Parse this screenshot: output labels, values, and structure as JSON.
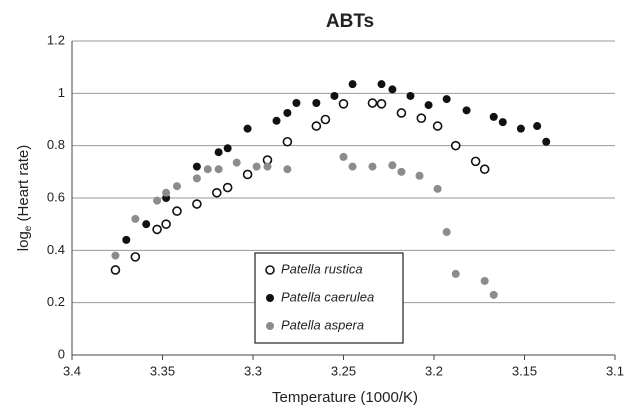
{
  "chart_data": {
    "type": "scatter",
    "title": "ABTs",
    "x_label": "Temperature (1000/K)",
    "y_label": [
      "log",
      "e",
      " (Heart rate)"
    ],
    "xlim": [
      3.4,
      3.1
    ],
    "xticks": [
      3.4,
      3.35,
      3.3,
      3.25,
      3.2,
      3.15,
      3.1
    ],
    "ylim": [
      0,
      1.2
    ],
    "yticks": [
      0,
      0.2,
      0.4,
      0.6,
      0.8,
      1,
      1.2
    ],
    "grid": true,
    "legend": "lower center",
    "series": [
      {
        "name": "Patella rustica",
        "color": "#111111",
        "filled": false,
        "x": [
          3.376,
          3.365,
          3.353,
          3.348,
          3.342,
          3.331,
          3.32,
          3.314,
          3.303,
          3.292,
          3.281,
          3.265,
          3.26,
          3.25,
          3.234,
          3.229,
          3.218,
          3.207,
          3.198,
          3.188,
          3.177,
          3.172
        ],
        "values": [
          0.325,
          0.375,
          0.48,
          0.5,
          0.55,
          0.577,
          0.62,
          0.64,
          0.69,
          0.745,
          0.815,
          0.875,
          0.9,
          0.96,
          0.963,
          0.96,
          0.925,
          0.905,
          0.875,
          0.8,
          0.74,
          0.71
        ]
      },
      {
        "name": "Patella caerulea",
        "color": "#111111",
        "filled": true,
        "x": [
          3.37,
          3.359,
          3.348,
          3.331,
          3.319,
          3.314,
          3.303,
          3.287,
          3.281,
          3.276,
          3.265,
          3.255,
          3.245,
          3.229,
          3.223,
          3.213,
          3.203,
          3.193,
          3.182,
          3.167,
          3.162,
          3.152,
          3.143,
          3.138
        ],
        "values": [
          0.44,
          0.5,
          0.6,
          0.72,
          0.775,
          0.79,
          0.865,
          0.895,
          0.925,
          0.963,
          0.963,
          0.99,
          1.035,
          1.035,
          1.015,
          0.99,
          0.955,
          0.978,
          0.935,
          0.91,
          0.89,
          0.865,
          0.875,
          0.815
        ]
      },
      {
        "name": "Patella aspera",
        "color": "#8c8c8c",
        "filled": true,
        "x": [
          3.376,
          3.365,
          3.353,
          3.348,
          3.342,
          3.331,
          3.325,
          3.319,
          3.309,
          3.298,
          3.292,
          3.281,
          3.25,
          3.245,
          3.234,
          3.223,
          3.218,
          3.208,
          3.198,
          3.193,
          3.188,
          3.172,
          3.167
        ],
        "values": [
          0.38,
          0.52,
          0.59,
          0.62,
          0.645,
          0.675,
          0.71,
          0.71,
          0.735,
          0.72,
          0.72,
          0.71,
          0.757,
          0.72,
          0.72,
          0.725,
          0.7,
          0.685,
          0.635,
          0.47,
          0.31,
          0.283,
          0.23
        ]
      }
    ]
  }
}
